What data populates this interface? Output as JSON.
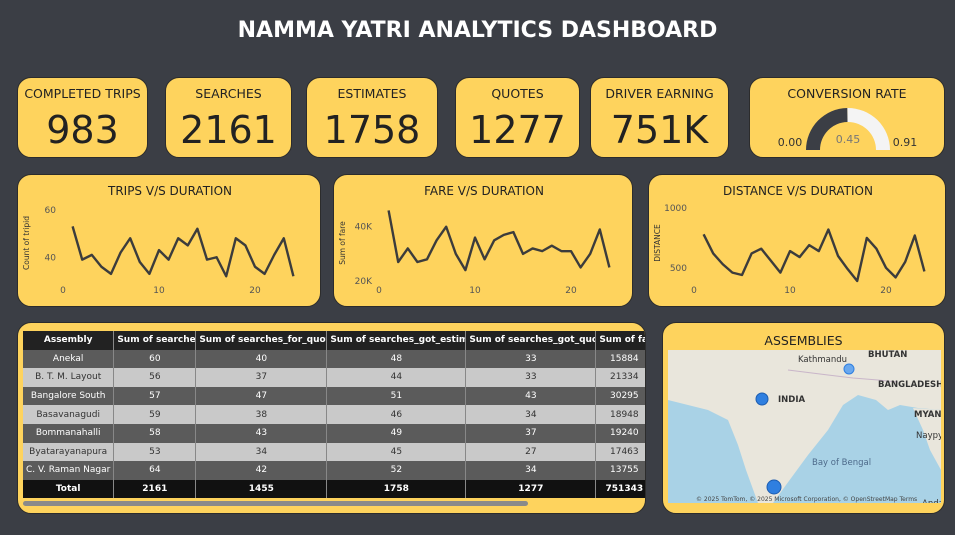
{
  "title": "NAMMA YATRI ANALYTICS DASHBOARD",
  "kpis": [
    {
      "label": "COMPLETED TRIPS",
      "value": 983
    },
    {
      "label": "SEARCHES",
      "value": 2161
    },
    {
      "label": "ESTIMATES",
      "value": 1758
    },
    {
      "label": "QUOTES",
      "value": 1277
    },
    {
      "label": "DRIVER EARNING",
      "value": "751K"
    }
  ],
  "gauge": {
    "label": "CONVERSION RATE",
    "min": {
      "value": 0,
      "label": "0.00"
    },
    "value": 0.45,
    "max": 0.91
  },
  "chart_data": [
    {
      "type": "line",
      "title": "TRIPS V/S DURATION",
      "y_label": "Count of tripid",
      "color": "#3c3c3c",
      "x": [
        1,
        2,
        3,
        4,
        5,
        6,
        7,
        8,
        9,
        10,
        11,
        12,
        13,
        14,
        15,
        16,
        17,
        18,
        19,
        20,
        21,
        22,
        23,
        24
      ],
      "values": [
        53,
        39,
        41,
        36,
        33,
        42,
        48,
        38,
        33,
        43,
        39,
        48,
        45,
        52,
        39,
        40,
        32,
        48,
        45,
        36,
        33,
        41,
        48,
        32
      ],
      "xlim": [
        0,
        25
      ],
      "xticks": [
        0,
        10,
        20
      ],
      "ylim": [
        30,
        62
      ],
      "yticks": [
        40,
        60
      ]
    },
    {
      "type": "line",
      "title": "FARE V/S DURATION",
      "y_label": "Sum of fare",
      "color": "#3c3c3c",
      "x": [
        1,
        2,
        3,
        4,
        5,
        6,
        7,
        8,
        9,
        10,
        11,
        12,
        13,
        14,
        15,
        16,
        17,
        18,
        19,
        20,
        21,
        22,
        23,
        24
      ],
      "values": [
        46000,
        27000,
        32000,
        27000,
        28000,
        35000,
        40000,
        30000,
        24000,
        36000,
        28000,
        35000,
        37000,
        38000,
        30000,
        32000,
        31000,
        33000,
        31000,
        31000,
        25000,
        30000,
        39000,
        25000
      ],
      "xlim": [
        0,
        25
      ],
      "xticks": [
        0,
        10,
        20
      ],
      "ylim": [
        20000,
        48000
      ],
      "yticks": [
        {
          "value": 20000,
          "label": "20K"
        },
        {
          "value": 40000,
          "label": "40K"
        }
      ]
    },
    {
      "type": "line",
      "title": "DISTANCE V/S DURATION",
      "y_label": "DISTANCE",
      "color": "#3c3c3c",
      "x": [
        1,
        2,
        3,
        4,
        5,
        6,
        7,
        8,
        9,
        10,
        11,
        12,
        13,
        14,
        15,
        16,
        17,
        18,
        19,
        20,
        21,
        22,
        23,
        24
      ],
      "values": [
        780,
        620,
        530,
        460,
        440,
        620,
        660,
        560,
        460,
        640,
        590,
        690,
        640,
        820,
        600,
        490,
        390,
        750,
        660,
        500,
        420,
        550,
        770,
        470
      ],
      "xlim": [
        0,
        25
      ],
      "xticks": [
        0,
        10,
        20
      ],
      "ylim": [
        390,
        1025
      ],
      "yticks": [
        500,
        1000
      ]
    }
  ],
  "table": {
    "columns": [
      "Assembly",
      "Sum of searches",
      "Sum of searches_for_quotes",
      "Sum of searches_got_estimate",
      "Sum of searches_got_quotes",
      "Sum of fare"
    ],
    "rows": [
      [
        "Anekal",
        60,
        40,
        48,
        33,
        15884
      ],
      [
        "B. T. M. Layout",
        56,
        37,
        44,
        33,
        21334
      ],
      [
        "Bangalore South",
        57,
        47,
        51,
        43,
        30295
      ],
      [
        "Basavanagudi",
        59,
        38,
        46,
        34,
        18948
      ],
      [
        "Bommanahalli",
        58,
        43,
        49,
        37,
        19240
      ],
      [
        "Byatarayanapura",
        53,
        34,
        45,
        27,
        17463
      ],
      [
        "C. V. Raman Nagar",
        64,
        42,
        52,
        34,
        13755
      ]
    ],
    "total": [
      "Total",
      2161,
      1455,
      1758,
      1277,
      751343
    ]
  },
  "map": {
    "title": "ASSEMBLIES",
    "labels": [
      "Kathmandu",
      "BHUTAN",
      "BANGLADESH",
      "INDIA",
      "MYAN",
      "Naypyi",
      "Bay of Bengal",
      "Andam"
    ],
    "attribution": "© 2025 TomTom, © 2025 Microsoft Corporation, © OpenStreetMap  Terms"
  }
}
